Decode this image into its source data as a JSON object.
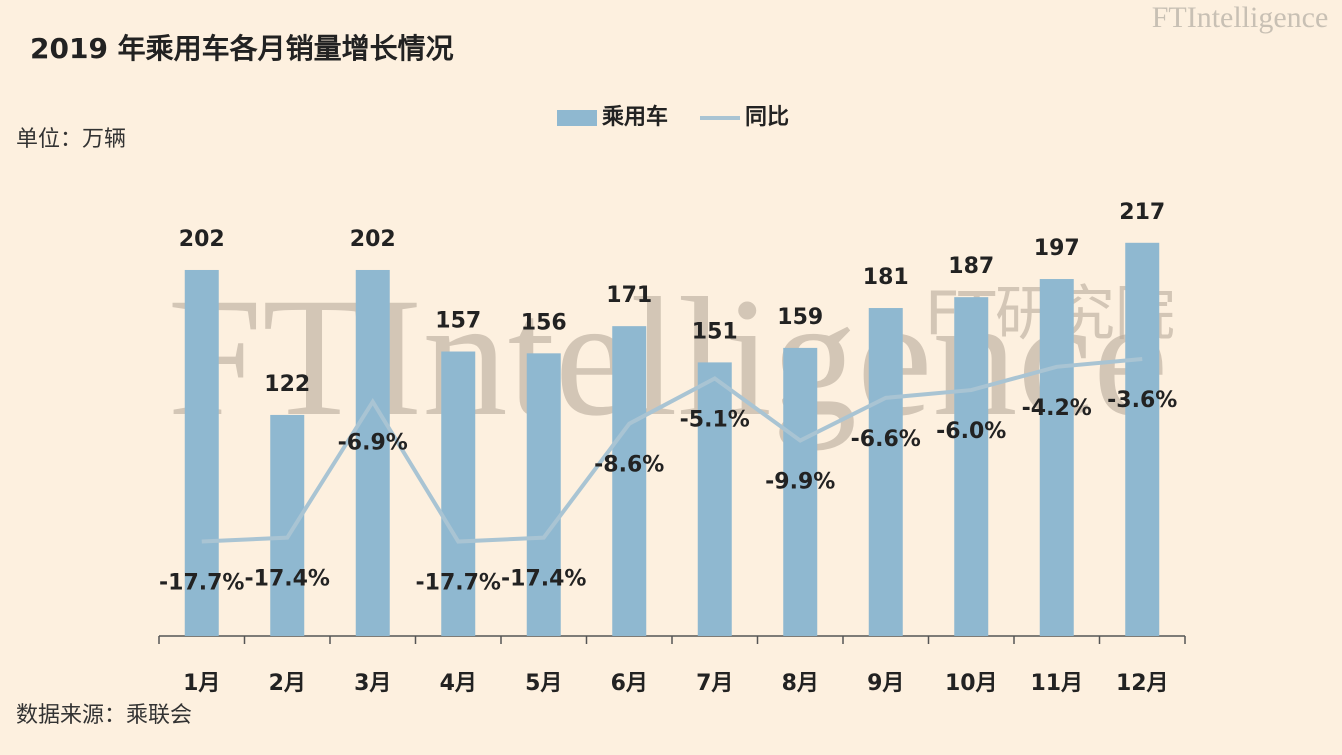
{
  "chart_data": {
    "type": "bar",
    "title": "2019 年乘用车各月销量增长情况",
    "unit": "单位：万辆",
    "source": "数据来源：乘联会",
    "watermark": "FTIntelligence",
    "watermark_cn": "FT研究院",
    "categories": [
      "1月",
      "2月",
      "3月",
      "4月",
      "5月",
      "6月",
      "7月",
      "8月",
      "9月",
      "10月",
      "11月",
      "12月"
    ],
    "series": [
      {
        "name": "乘用车",
        "type": "bar",
        "color": "#8fb8d0",
        "values": [
          202,
          122,
          202,
          157,
          156,
          171,
          151,
          159,
          181,
          187,
          197,
          217
        ]
      },
      {
        "name": "同比",
        "type": "line",
        "axis": "y2",
        "color": "#a9c4d3",
        "values": [
          -17.7,
          -17.4,
          -6.9,
          -17.7,
          -17.4,
          -8.6,
          -5.1,
          -9.9,
          -6.6,
          -6.0,
          -4.2,
          -3.6
        ],
        "value_labels": [
          "-17.7%",
          "-17.4%",
          "-6.9%",
          "-17.7%",
          "-17.4%",
          "-8.6%",
          "-5.1%",
          "-9.9%",
          "-6.6%",
          "-6.0%",
          "-4.2%",
          "-3.6%"
        ]
      }
    ],
    "ylim": [
      0,
      250
    ],
    "y2lim": [
      -25,
      10
    ],
    "legend": "top"
  }
}
